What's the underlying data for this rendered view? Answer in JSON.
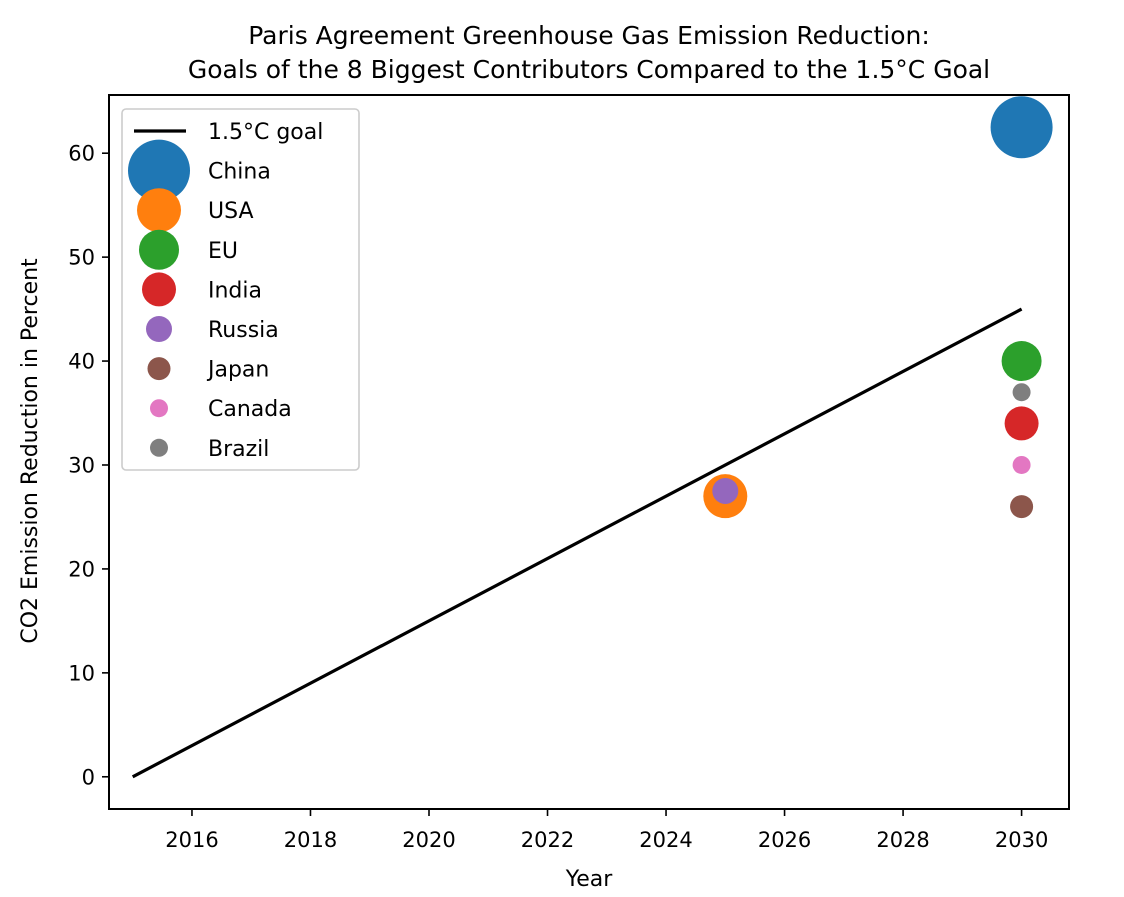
{
  "chart_data": {
    "type": "scatter",
    "title": "Paris Agreement Greenhouse Gas Emission Reduction:",
    "subtitle": "Goals of the 8 Biggest Contributors Compared to the 1.5°C Goal",
    "xlabel": "Year",
    "ylabel": "CO2 Emission Reduction in Percent",
    "xlim": [
      2014.6,
      2030.8
    ],
    "ylim": [
      -3.1,
      65.6
    ],
    "xticks": [
      2016,
      2018,
      2020,
      2022,
      2024,
      2026,
      2028,
      2030
    ],
    "yticks": [
      0,
      10,
      20,
      30,
      40,
      50,
      60
    ],
    "grid": false,
    "legend_position": "top-left",
    "line": {
      "name": "1.5°C goal",
      "x": [
        2015,
        2030
      ],
      "y": [
        0,
        45
      ],
      "color": "#000000"
    },
    "series": [
      {
        "name": "China",
        "x": [
          2030
        ],
        "y": [
          62.5
        ],
        "color": "#1f77b4",
        "size": 31
      },
      {
        "name": "USA",
        "x": [
          2025
        ],
        "y": [
          27
        ],
        "color": "#ff7f0e",
        "size": 22
      },
      {
        "name": "EU",
        "x": [
          2030
        ],
        "y": [
          40
        ],
        "color": "#2ca02c",
        "size": 20
      },
      {
        "name": "India",
        "x": [
          2030
        ],
        "y": [
          34
        ],
        "color": "#d62728",
        "size": 17
      },
      {
        "name": "Russia",
        "x": [
          2025
        ],
        "y": [
          27.5
        ],
        "color": "#9467bd",
        "size": 13
      },
      {
        "name": "Japan",
        "x": [
          2030
        ],
        "y": [
          26
        ],
        "color": "#8c564b",
        "size": 11.5
      },
      {
        "name": "Canada",
        "x": [
          2030
        ],
        "y": [
          30
        ],
        "color": "#e377c2",
        "size": 9
      },
      {
        "name": "Brazil",
        "x": [
          2030
        ],
        "y": [
          37
        ],
        "color": "#7f7f7f",
        "size": 9
      }
    ]
  }
}
